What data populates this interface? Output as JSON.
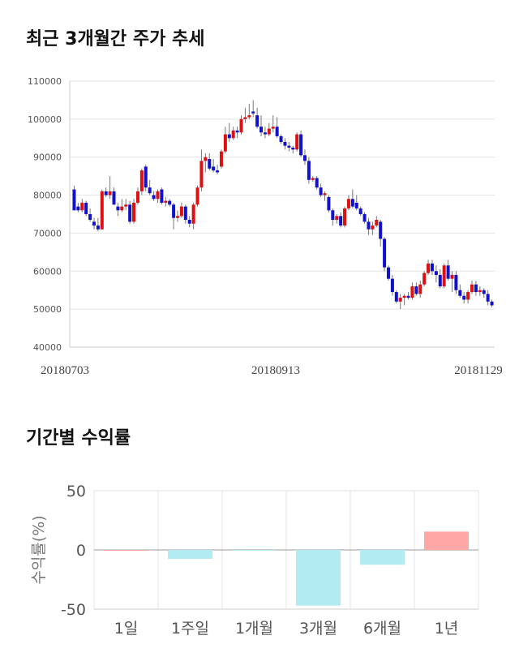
{
  "sections": {
    "price_title": "최근 3개월간 주가 추세",
    "return_title": "기간별 수익률"
  },
  "chart_data": [
    {
      "type": "candlestick",
      "title": "최근 3개월간 주가 추세",
      "ylim": [
        40000,
        110000
      ],
      "yticks": [
        40000,
        50000,
        60000,
        70000,
        80000,
        90000,
        100000,
        110000
      ],
      "xtick_labels": [
        "20180703",
        "20180913",
        "20181129"
      ],
      "grid": true,
      "colors": {
        "up": "#dd1111",
        "down": "#1111cc",
        "wick": "#777777"
      },
      "candles": [
        [
          81500,
          82500,
          76000,
          76000
        ],
        [
          77000,
          78000,
          75500,
          76000
        ],
        [
          76000,
          79000,
          75500,
          78000
        ],
        [
          78000,
          78500,
          74500,
          75000
        ],
        [
          75000,
          76500,
          73000,
          73500
        ],
        [
          73000,
          74000,
          71000,
          72000
        ],
        [
          72000,
          74000,
          70500,
          71000
        ],
        [
          71000,
          81500,
          71000,
          81000
        ],
        [
          81000,
          82000,
          79500,
          80000
        ],
        [
          80000,
          85000,
          79000,
          81000
        ],
        [
          81000,
          82000,
          77500,
          77500
        ],
        [
          77000,
          78000,
          74500,
          76000
        ],
        [
          76000,
          79000,
          75500,
          77000
        ],
        [
          77000,
          79000,
          76000,
          77500
        ],
        [
          77500,
          78500,
          72500,
          73000
        ],
        [
          73000,
          79000,
          72500,
          78000
        ],
        [
          78000,
          82000,
          77500,
          81000
        ],
        [
          81000,
          87000,
          80000,
          86500
        ],
        [
          87500,
          88000,
          81000,
          82000
        ],
        [
          82000,
          84000,
          80000,
          80500
        ],
        [
          80000,
          81000,
          78500,
          79000
        ],
        [
          79000,
          81500,
          78000,
          81000
        ],
        [
          81500,
          82000,
          77500,
          78000
        ],
        [
          78000,
          79500,
          77000,
          78500
        ],
        [
          78500,
          79000,
          77000,
          77500
        ],
        [
          77500,
          78000,
          71000,
          74000
        ],
        [
          74000,
          76000,
          73000,
          74500
        ],
        [
          74500,
          78000,
          74000,
          77000
        ],
        [
          77000,
          77500,
          72500,
          73500
        ],
        [
          73500,
          74500,
          71500,
          72500
        ],
        [
          72500,
          78000,
          71000,
          77500
        ],
        [
          77500,
          82500,
          77000,
          82000
        ],
        [
          82000,
          92000,
          81000,
          89000
        ],
        [
          89000,
          91000,
          86000,
          90000
        ],
        [
          89500,
          91000,
          86500,
          87000
        ],
        [
          87500,
          89500,
          86000,
          86500
        ],
        [
          86500,
          88000,
          85500,
          86000
        ],
        [
          87500,
          92000,
          87000,
          91500
        ],
        [
          91500,
          98000,
          91000,
          96000
        ],
        [
          96000,
          99000,
          94000,
          95000
        ],
        [
          95000,
          98000,
          94500,
          97000
        ],
        [
          97000,
          98000,
          95000,
          96500
        ],
        [
          96500,
          101000,
          96000,
          100000
        ],
        [
          100000,
          103000,
          99000,
          100500
        ],
        [
          100500,
          104000,
          100000,
          101000
        ],
        [
          102000,
          105000,
          100500,
          101500
        ],
        [
          101000,
          103000,
          97500,
          98000
        ],
        [
          98000,
          101000,
          95500,
          96500
        ],
        [
          96500,
          98000,
          95000,
          96000
        ],
        [
          96000,
          99000,
          95500,
          97500
        ],
        [
          97500,
          101000,
          96500,
          98000
        ],
        [
          98000,
          100500,
          95000,
          95500
        ],
        [
          95500,
          96000,
          93500,
          94000
        ],
        [
          94000,
          95000,
          92000,
          93000
        ],
        [
          93000,
          94000,
          91500,
          92500
        ],
        [
          92500,
          93000,
          91000,
          92000
        ],
        [
          92000,
          96500,
          91500,
          96000
        ],
        [
          96000,
          97000,
          90000,
          90500
        ],
        [
          90500,
          92000,
          88000,
          89000
        ],
        [
          89000,
          90000,
          83000,
          84000
        ],
        [
          84000,
          85000,
          83500,
          84500
        ],
        [
          84500,
          85000,
          81500,
          82000
        ],
        [
          82000,
          83000,
          79500,
          80000
        ],
        [
          80000,
          81000,
          78500,
          80500
        ],
        [
          79500,
          80000,
          75500,
          76000
        ],
        [
          76000,
          76500,
          72000,
          73500
        ],
        [
          73500,
          75000,
          72500,
          74500
        ],
        [
          74500,
          75500,
          71500,
          72000
        ],
        [
          72000,
          77000,
          71500,
          76500
        ],
        [
          76500,
          80000,
          76000,
          79000
        ],
        [
          79000,
          81500,
          76500,
          77000
        ],
        [
          78000,
          80000,
          76000,
          76500
        ],
        [
          76500,
          77000,
          74500,
          75000
        ],
        [
          75000,
          75500,
          72500,
          73000
        ],
        [
          73000,
          74000,
          69500,
          71000
        ],
        [
          71000,
          73000,
          69500,
          72000
        ],
        [
          72000,
          74500,
          71500,
          73500
        ],
        [
          73000,
          73500,
          66500,
          68500
        ],
        [
          68500,
          69000,
          60000,
          61000
        ],
        [
          61000,
          61500,
          57500,
          58000
        ],
        [
          58000,
          59000,
          53500,
          54500
        ],
        [
          54500,
          55000,
          51500,
          52000
        ],
        [
          52000,
          54000,
          50000,
          53000
        ],
        [
          53000,
          54000,
          51000,
          53500
        ],
        [
          53500,
          54500,
          52500,
          53000
        ],
        [
          53000,
          57000,
          52500,
          56000
        ],
        [
          56000,
          57000,
          53500,
          54000
        ],
        [
          54000,
          57500,
          53000,
          56500
        ],
        [
          56500,
          60000,
          56000,
          59500
        ],
        [
          59500,
          63000,
          59000,
          62000
        ],
        [
          62000,
          63000,
          59000,
          60000
        ],
        [
          60000,
          61500,
          57000,
          59000
        ],
        [
          59000,
          60500,
          55500,
          56000
        ],
        [
          56000,
          62000,
          55500,
          61500
        ],
        [
          61500,
          63000,
          57500,
          58000
        ],
        [
          58000,
          60000,
          54500,
          59000
        ],
        [
          59000,
          60000,
          54000,
          55000
        ],
        [
          55000,
          56500,
          53000,
          53500
        ],
        [
          53500,
          54500,
          51500,
          52500
        ],
        [
          52500,
          55000,
          51500,
          54500
        ],
        [
          54500,
          57500,
          54000,
          56500
        ],
        [
          56500,
          57500,
          53500,
          54500
        ],
        [
          54500,
          56000,
          53500,
          55000
        ],
        [
          55000,
          55500,
          53000,
          54000
        ],
        [
          54000,
          55000,
          51000,
          52000
        ],
        [
          52000,
          52500,
          50500,
          51000
        ]
      ]
    },
    {
      "type": "bar",
      "title": "기간별 수익률",
      "ylabel": "수익률(%)",
      "ylim": [
        -50,
        50
      ],
      "yticks": [
        50,
        0,
        -50
      ],
      "categories": [
        "1일",
        "1주일",
        "1개월",
        "3개월",
        "6개월",
        "1년"
      ],
      "values": [
        0,
        -7.5,
        -0.5,
        -47,
        -12.5,
        15.5
      ],
      "colors": {
        "positive": "#ffa6a6",
        "negative": "#b2ebf2"
      },
      "grid": true
    }
  ]
}
